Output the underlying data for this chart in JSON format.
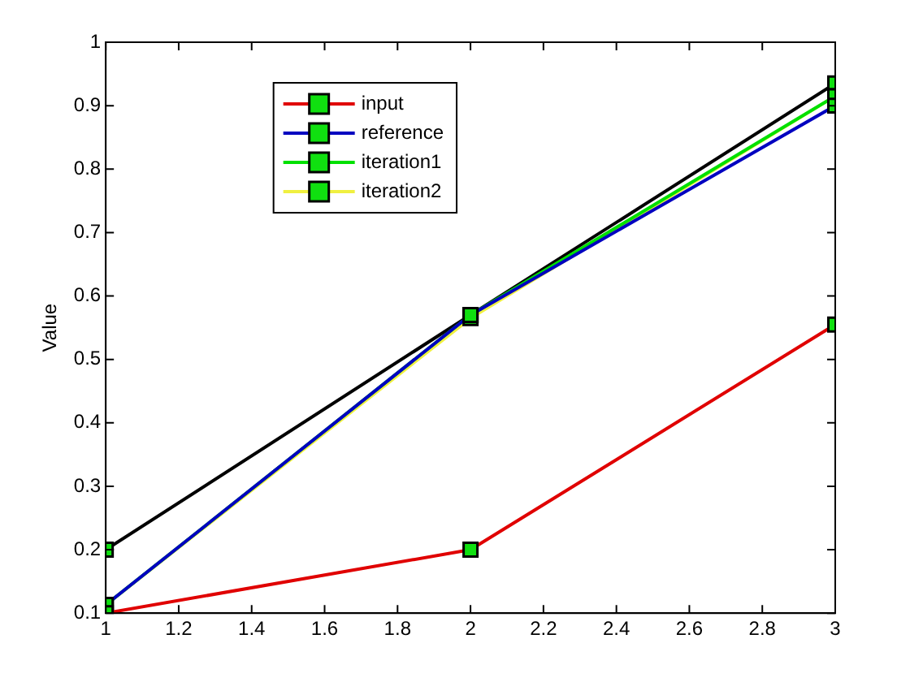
{
  "chart_data": {
    "type": "line",
    "ylabel": "Value",
    "x": [
      1,
      2,
      3
    ],
    "series": [
      {
        "name": "input",
        "color": "#e00000",
        "values": [
          0.1,
          0.2,
          0.555
        ]
      },
      {
        "name": "reference",
        "color": "#0000c0",
        "values": [
          0.113,
          0.57,
          0.9
        ]
      },
      {
        "name": "iteration1",
        "color": "#00e000",
        "values": [
          0.113,
          0.57,
          0.915
        ]
      },
      {
        "name": "iteration2",
        "color": "#f0f040",
        "values": [
          0.113,
          0.565,
          0.915
        ]
      },
      {
        "color": "#000000",
        "values": [
          0.2,
          0.57,
          0.935
        ]
      }
    ],
    "xlim": [
      1,
      3
    ],
    "xticks": [
      1,
      1.2,
      1.4,
      1.6,
      1.8,
      2,
      2.2,
      2.4,
      2.6,
      2.8,
      3
    ],
    "ylim": [
      0.1,
      1
    ],
    "yticks": [
      0.1,
      0.2,
      0.3,
      0.4,
      0.5,
      0.6,
      0.7,
      0.8,
      0.9,
      1
    ],
    "grid": false,
    "legend": "top left",
    "marker": "square",
    "line_style": "solid"
  }
}
